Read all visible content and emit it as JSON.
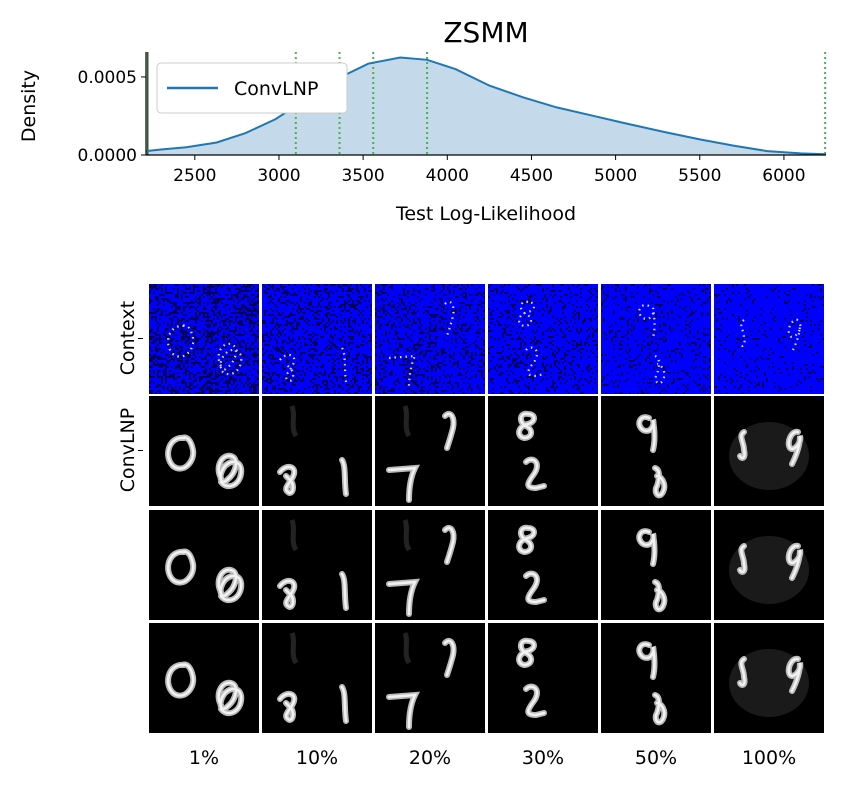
{
  "chart_data": [
    {
      "type": "area",
      "title": "ZSMM",
      "xlabel": "Test Log-Likelihood",
      "ylabel": "Density",
      "xlim": [
        2210,
        6250
      ],
      "ylim": [
        0,
        0.00066
      ],
      "x_ticks": [
        2500,
        3000,
        3500,
        4000,
        4500,
        5000,
        5500,
        6000
      ],
      "y_ticks": [
        0.0,
        0.0005
      ],
      "y_tick_labels": [
        "0.0000",
        "0.0005"
      ],
      "legend": {
        "position": "top-left",
        "entries": [
          "ConvLNP"
        ]
      },
      "series": [
        {
          "name": "ConvLNP",
          "color": "#1f77b4",
          "x": [
            2210,
            2300,
            2450,
            2630,
            2800,
            2980,
            3150,
            3330,
            3530,
            3720,
            3880,
            4050,
            4250,
            4450,
            4650,
            4850,
            5050,
            5300,
            5500,
            5700,
            5900,
            6100,
            6250
          ],
          "y": [
            2.5e-05,
            3.5e-05,
            5e-05,
            8e-05,
            0.00014,
            0.00023,
            0.00035,
            0.00048,
            0.000585,
            0.000625,
            0.00061,
            0.00055,
            0.000445,
            0.00037,
            0.000305,
            0.000255,
            0.000205,
            0.000145,
            0.0001,
            6e-05,
            2.5e-05,
            1e-05,
            5e-06
          ]
        }
      ],
      "vlines": [
        {
          "x": 2220,
          "style": "solid",
          "color": "#2b5c2b"
        },
        {
          "x": 3100,
          "style": "dotted",
          "color": "#4caf50"
        },
        {
          "x": 3360,
          "style": "dotted",
          "color": "#4caf50"
        },
        {
          "x": 3560,
          "style": "dotted",
          "color": "#4caf50"
        },
        {
          "x": 3880,
          "style": "dotted",
          "color": "#4caf50"
        },
        {
          "x": 6245,
          "style": "dotted",
          "color": "#4caf50"
        }
      ]
    },
    {
      "type": "image-grid",
      "row_labels": [
        "Context",
        "ConvLNP"
      ],
      "column_labels": [
        "1%",
        "10%",
        "20%",
        "30%",
        "50%",
        "100%"
      ]
    }
  ],
  "colors": {
    "context_background": "#0000ff",
    "sample_background": "#000000",
    "separator": "#ffffff"
  }
}
